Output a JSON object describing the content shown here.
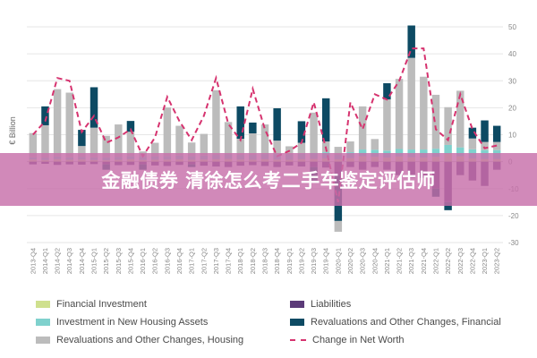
{
  "banner": {
    "text": "金融债券 清徐怎么考二手车鉴定评估师"
  },
  "colors": {
    "financial_investment": "#cfe08e",
    "investment_housing": "#7fd1cd",
    "revaluations_housing": "#bcbcbc",
    "liabilities": "#5b3a78",
    "revaluations_financial": "#0d4a63",
    "net_worth": "#d6336f",
    "grid": "#e6e6e6",
    "axis_text": "#888888"
  },
  "legend": [
    {
      "label": "Financial Investment",
      "key": "financial_investment",
      "kind": "box"
    },
    {
      "label": "Liabilities",
      "key": "liabilities",
      "kind": "box"
    },
    {
      "label": "Investment in New Housing Assets",
      "key": "investment_housing",
      "kind": "box"
    },
    {
      "label": "Revaluations and Other Changes, Financial",
      "key": "revaluations_financial",
      "kind": "box"
    },
    {
      "label": "Revaluations and Other Changes, Housing",
      "key": "revaluations_housing",
      "kind": "box"
    },
    {
      "label": "Change in Net Worth",
      "key": "net_worth",
      "kind": "line"
    }
  ],
  "chart_data": {
    "type": "bar",
    "stacked": true,
    "ylabel": "€ Billion",
    "ylim": [
      -30,
      50
    ],
    "yticks": [
      -30,
      -20,
      -10,
      0,
      10,
      20,
      30,
      40,
      50
    ],
    "y_axis_side": "right",
    "grid": true,
    "legend_position": "bottom",
    "categories": [
      "2013-Q4",
      "2014-Q1",
      "2014-Q2",
      "2014-Q3",
      "2014-Q4",
      "2015-Q1",
      "2015-Q2",
      "2015-Q3",
      "2015-Q4",
      "2016-Q1",
      "2016-Q2",
      "2016-Q3",
      "2016-Q4",
      "2017-Q1",
      "2017-Q2",
      "2017-Q3",
      "2017-Q4",
      "2018-Q1",
      "2018-Q2",
      "2018-Q3",
      "2018-Q4",
      "2019-Q1",
      "2019-Q2",
      "2019-Q3",
      "2019-Q4",
      "2020-Q1",
      "2020-Q2",
      "2020-Q3",
      "2020-Q4",
      "2021-Q1",
      "2021-Q2",
      "2021-Q3",
      "2021-Q4",
      "2022-Q1",
      "2022-Q2",
      "2022-Q3",
      "2022-Q4",
      "2023-Q1",
      "2023-Q2"
    ],
    "series": [
      {
        "name": "Financial Investment",
        "key": "financial_investment",
        "values": [
          0.8,
          0.6,
          0.9,
          0.7,
          0.8,
          0.6,
          0.5,
          0.7,
          0.9,
          0.6,
          0.7,
          0.8,
          0.9,
          0.7,
          0.8,
          0.9,
          1.0,
          0.8,
          0.7,
          0.9,
          0.8,
          0.7,
          0.9,
          1.0,
          1.2,
          0.9,
          1.3,
          2.0,
          1.8,
          1.5,
          1.9,
          1.6,
          1.5,
          1.8,
          3.0,
          2.0,
          1.2,
          1.0,
          1.0
        ]
      },
      {
        "name": "Investment in New Housing Assets",
        "key": "investment_housing",
        "values": [
          0.8,
          0.9,
          1.0,
          0.9,
          1.0,
          1.0,
          1.1,
          1.1,
          1.2,
          1.2,
          1.3,
          1.3,
          1.4,
          1.4,
          1.5,
          1.6,
          1.7,
          1.7,
          1.8,
          1.9,
          2.0,
          2.0,
          2.1,
          2.2,
          2.3,
          1.6,
          2.2,
          2.5,
          2.6,
          2.6,
          2.8,
          2.9,
          3.0,
          3.0,
          3.2,
          3.3,
          3.4,
          3.3,
          3.3
        ]
      },
      {
        "name": "Revaluations and Other Changes, Housing",
        "key": "revaluations_housing",
        "values": [
          9.0,
          12.0,
          25.0,
          24.0,
          4.0,
          11.0,
          8.0,
          12.0,
          9.0,
          2.0,
          5.0,
          18.0,
          11.0,
          5.0,
          8.0,
          24.0,
          12.0,
          6.0,
          8.0,
          11.0,
          5.0,
          3.0,
          4.0,
          15.0,
          4.0,
          3.0,
          4.0,
          16.0,
          4.0,
          19.0,
          26.0,
          34.0,
          27.0,
          20.0,
          14.0,
          21.0,
          4.0,
          3.0,
          3.0
        ]
      },
      {
        "name": "Revaluations and Other Changes, Financial",
        "key": "revaluations_financial",
        "values": [
          0.0,
          7.0,
          0.0,
          0.0,
          6.0,
          15.0,
          0.0,
          0.0,
          4.0,
          0.0,
          0.0,
          0.0,
          0.0,
          0.0,
          0.0,
          0.0,
          0.0,
          12.0,
          4.0,
          0.0,
          12.0,
          0.0,
          8.0,
          0.0,
          16.0,
          0.0,
          0.0,
          0.0,
          0.0,
          6.0,
          0.0,
          12.0,
          0.0,
          0.0,
          0.0,
          0.0,
          4.0,
          8.0,
          6.0
        ]
      },
      {
        "name": "Liabilities",
        "key": "liabilities",
        "values": [
          -1.0,
          -0.8,
          -1.2,
          -1.0,
          -1.1,
          -0.9,
          -1.0,
          -1.3,
          -1.2,
          -1.0,
          -1.4,
          -1.6,
          -1.2,
          -1.0,
          -1.5,
          -1.8,
          -2.0,
          -1.5,
          -1.3,
          -1.6,
          -2.0,
          -1.4,
          -1.8,
          -2.0,
          -2.2,
          -5.0,
          -2.0,
          -3.0,
          -2.0,
          -3.0,
          -5.0,
          -6.0,
          -6.0,
          -10.0,
          -15.0,
          -5.0,
          -7.0,
          -9.0,
          -3.0
        ]
      }
    ],
    "negative_extra": [
      {
        "key": "revaluations_financial",
        "values": [
          0,
          0,
          0,
          0,
          0,
          0,
          -2,
          0,
          0,
          -2,
          0,
          0,
          0,
          -1,
          0,
          0,
          0,
          0,
          0,
          0,
          0,
          0,
          0,
          -5,
          0,
          -17,
          0,
          0,
          0,
          0,
          0,
          0,
          0,
          -3,
          -3,
          0,
          0,
          0,
          0
        ]
      },
      {
        "key": "revaluations_housing",
        "values": [
          0,
          0,
          0,
          0,
          0,
          0,
          0,
          0,
          0,
          0,
          0,
          0,
          0,
          0,
          0,
          0,
          0,
          0,
          0,
          0,
          0,
          0,
          0,
          0,
          0,
          -4,
          0,
          0,
          0,
          0,
          0,
          0,
          0,
          0,
          0,
          0,
          0,
          0,
          0
        ]
      }
    ],
    "line": {
      "name": "Change in Net Worth",
      "key": "net_worth",
      "values": [
        10,
        15,
        31,
        30,
        11,
        17,
        7,
        9,
        12,
        2,
        9,
        24,
        15,
        8,
        17,
        31,
        14,
        8,
        27,
        12,
        2,
        4,
        7,
        22,
        5,
        -15,
        22,
        12,
        25,
        23,
        30,
        42,
        42,
        12,
        8,
        25,
        12,
        5,
        6
      ]
    }
  }
}
